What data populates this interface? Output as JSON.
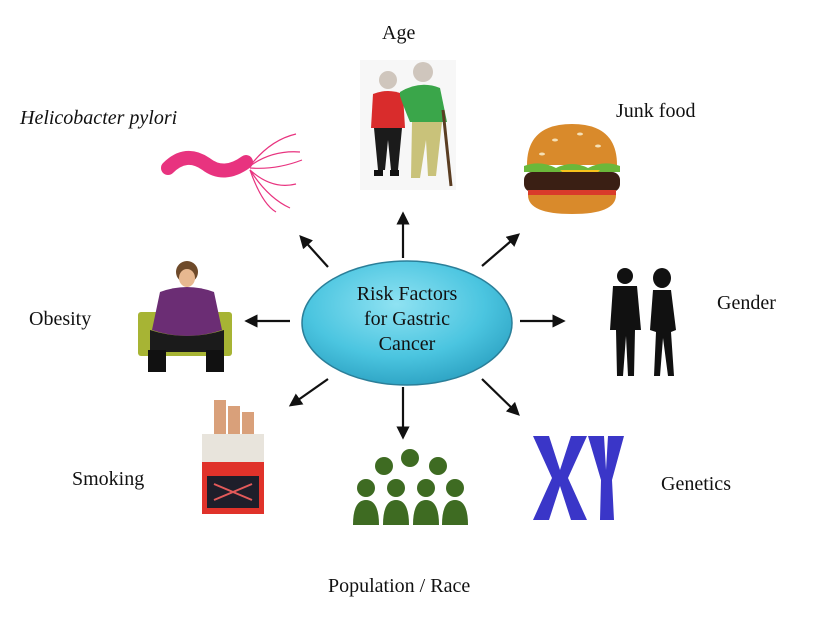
{
  "center": {
    "lines": [
      "Risk Factors",
      "for Gastric",
      "Cancer"
    ],
    "fill": "#4bc5e0",
    "stroke": "#2b7f99"
  },
  "factors": {
    "age": "Age",
    "junk_food": "Junk food",
    "gender": "Gender",
    "genetics": "Genetics",
    "population_race": "Population / Race",
    "smoking": "Smoking",
    "obesity": "Obesity",
    "h_pylori": "Helicobacter pylori"
  },
  "icons": {
    "age": "elderly-couple-icon",
    "junk_food": "burger-icon",
    "gender": "man-woman-silhouette-icon",
    "genetics": "xy-chromosome-icon",
    "population_race": "crowd-icon",
    "smoking": "cigarette-pack-icon",
    "obesity": "obese-person-icon",
    "h_pylori": "bacterium-icon"
  },
  "colors": {
    "arrow": "#111111",
    "bacterium": "#e8337f",
    "chromosome": "#3a36c8",
    "crowd": "#3e6b22"
  }
}
